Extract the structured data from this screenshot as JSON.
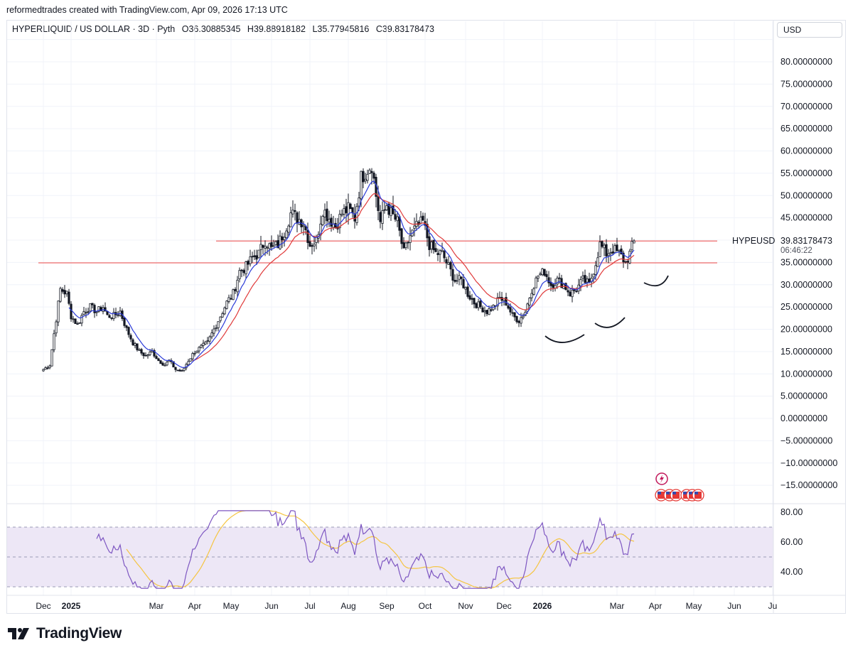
{
  "header": {
    "attribution": "reformedtrades created with TradingView.com, Apr 09, 2026 17:13 UTC"
  },
  "legend": {
    "symbol": "HYPERLIQUID / US DOLLAR · 3D · Pyth",
    "open": "O36.30885345",
    "high": "H39.88918182",
    "low": "L35.77945816",
    "close": "C39.83178473"
  },
  "currency_button": "USD",
  "price_label": {
    "symbol": "HYPEUSD",
    "price": "39.83178473",
    "countdown": "06:46:22"
  },
  "footer": {
    "brand": "TradingView"
  },
  "colors": {
    "up": "#ffffff",
    "down": "#131722",
    "ema_fast": "#2b3bd8",
    "ema_slow": "#e03a3a",
    "hline": "#f06b6b",
    "rsi_line": "#7e57c2",
    "rsi_ma": "#f5c542",
    "rsi_band": "#ede7f6"
  },
  "chart_data": [
    {
      "type": "candlestick",
      "title": "HYPERLIQUID / US DOLLAR · 3D · Pyth",
      "yaxis": {
        "range": [
          -18,
          85
        ],
        "ticks": [
          "80.00000000",
          "75.00000000",
          "70.00000000",
          "65.00000000",
          "60.00000000",
          "55.00000000",
          "50.00000000",
          "45.00000000",
          "35.00000000",
          "30.00000000",
          "25.00000000",
          "20.00000000",
          "15.00000000",
          "10.00000000",
          "5.00000000",
          "0.00000000",
          "−5.00000000",
          "−10.00000000",
          "−15.00000000"
        ],
        "tick_values": [
          80,
          75,
          70,
          65,
          60,
          55,
          50,
          45,
          35,
          30,
          25,
          20,
          15,
          10,
          5,
          0,
          -5,
          -10,
          -15
        ]
      },
      "xaxis": {
        "labels": [
          "Dec",
          "2025",
          "Mar",
          "Apr",
          "May",
          "Jun",
          "Jul",
          "Aug",
          "Sep",
          "Oct",
          "Nov",
          "Dec",
          "2026",
          "Mar",
          "Apr",
          "May",
          "Jun",
          "Ju"
        ],
        "label_bars": [
          0,
          13,
          53,
          71,
          88,
          107,
          125,
          143,
          161,
          179,
          198,
          216,
          234,
          269,
          287,
          305,
          324,
          342
        ],
        "bold": [
          "2025",
          "2026"
        ]
      },
      "close_path_anchors": [
        [
          0,
          11
        ],
        [
          3,
          12
        ],
        [
          5,
          19
        ],
        [
          8,
          29
        ],
        [
          11,
          28
        ],
        [
          13,
          23
        ],
        [
          16,
          21
        ],
        [
          19,
          24
        ],
        [
          22,
          25
        ],
        [
          25,
          24
        ],
        [
          28,
          25
        ],
        [
          30,
          23
        ],
        [
          33,
          23
        ],
        [
          36,
          24
        ],
        [
          39,
          20
        ],
        [
          42,
          17
        ],
        [
          45,
          15
        ],
        [
          48,
          14
        ],
        [
          51,
          15
        ],
        [
          54,
          13
        ],
        [
          57,
          12
        ],
        [
          59,
          13
        ],
        [
          62,
          11
        ],
        [
          65,
          10.5
        ],
        [
          68,
          13
        ],
        [
          71,
          15
        ],
        [
          74,
          16
        ],
        [
          77,
          17
        ],
        [
          80,
          20
        ],
        [
          83,
          23
        ],
        [
          86,
          26
        ],
        [
          89,
          28
        ],
        [
          92,
          33
        ],
        [
          95,
          34
        ],
        [
          98,
          36
        ],
        [
          101,
          37
        ],
        [
          104,
          40
        ],
        [
          107,
          38
        ],
        [
          110,
          39
        ],
        [
          113,
          42
        ],
        [
          116,
          46
        ],
        [
          119,
          45
        ],
        [
          122,
          44
        ],
        [
          125,
          39
        ],
        [
          128,
          40
        ],
        [
          131,
          47
        ],
        [
          134,
          45
        ],
        [
          137,
          43
        ],
        [
          140,
          46
        ],
        [
          143,
          47
        ],
        [
          146,
          45
        ],
        [
          149,
          54
        ],
        [
          152,
          56
        ],
        [
          154,
          57
        ],
        [
          156,
          50
        ],
        [
          158,
          44
        ],
        [
          161,
          48
        ],
        [
          163,
          46
        ],
        [
          166,
          44
        ],
        [
          169,
          37
        ],
        [
          172,
          41
        ],
        [
          175,
          43
        ],
        [
          178,
          44
        ],
        [
          181,
          39
        ],
        [
          184,
          37
        ],
        [
          187,
          37
        ],
        [
          190,
          34
        ],
        [
          193,
          31
        ],
        [
          196,
          31
        ],
        [
          199,
          28
        ],
        [
          202,
          26
        ],
        [
          205,
          25
        ],
        [
          208,
          24
        ],
        [
          211,
          25
        ],
        [
          214,
          27
        ],
        [
          217,
          26
        ],
        [
          220,
          23
        ],
        [
          223,
          22
        ],
        [
          226,
          24
        ],
        [
          229,
          29
        ],
        [
          232,
          32
        ],
        [
          235,
          33
        ],
        [
          238,
          30
        ],
        [
          241,
          31
        ],
        [
          244,
          30
        ],
        [
          247,
          28
        ],
        [
          250,
          29
        ],
        [
          253,
          31
        ],
        [
          256,
          30
        ],
        [
          259,
          35
        ],
        [
          261,
          39
        ],
        [
          264,
          37
        ],
        [
          267,
          38
        ],
        [
          270,
          37
        ],
        [
          273,
          35
        ],
        [
          275,
          37
        ],
        [
          277,
          40
        ]
      ],
      "hlines": [
        39.8,
        34.9
      ],
      "series": [
        {
          "name": "EMA fast",
          "color": "#2b3bd8"
        },
        {
          "name": "EMA slow",
          "color": "#e03a3a"
        }
      ],
      "last_price": 39.83178473
    },
    {
      "type": "line",
      "title": "RSI",
      "yaxis": {
        "range": [
          27,
          85
        ],
        "ticks": [
          "80.00",
          "60.00",
          "40.00"
        ],
        "tick_values": [
          80,
          60,
          40
        ]
      },
      "band": [
        30,
        70
      ],
      "midline": 50,
      "series": [
        {
          "name": "RSI",
          "color": "#7e57c2"
        },
        {
          "name": "RSI MA",
          "color": "#f5c542"
        }
      ]
    }
  ]
}
